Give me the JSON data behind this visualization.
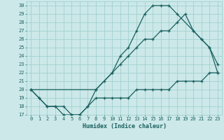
{
  "xlabel": "Humidex (Indice chaleur)",
  "background_color": "#cce8e8",
  "grid_color": "#99cccc",
  "line_color": "#1a6060",
  "xlim": [
    -0.5,
    23.5
  ],
  "ylim": [
    17,
    30.5
  ],
  "xticks": [
    0,
    1,
    2,
    3,
    4,
    5,
    6,
    7,
    8,
    9,
    10,
    11,
    12,
    13,
    14,
    15,
    16,
    17,
    18,
    19,
    20,
    21,
    22,
    23
  ],
  "yticks": [
    17,
    18,
    19,
    20,
    21,
    22,
    23,
    24,
    25,
    26,
    27,
    28,
    29,
    30
  ],
  "curve_upper_x": [
    0,
    1,
    2,
    3,
    4,
    5,
    6,
    7,
    8,
    10,
    11,
    12,
    13,
    14,
    15,
    16,
    17,
    18,
    20,
    21,
    22,
    23
  ],
  "curve_upper_y": [
    20,
    19,
    18,
    18,
    18,
    17,
    17,
    18,
    20,
    22,
    24,
    25,
    27,
    29,
    30,
    30,
    30,
    29,
    27,
    26,
    25,
    23
  ],
  "curve_middle_x": [
    0,
    8,
    9,
    10,
    11,
    12,
    13,
    14,
    15,
    16,
    17,
    18,
    19,
    20,
    21,
    22,
    23
  ],
  "curve_middle_y": [
    20,
    20,
    21,
    22,
    23,
    24,
    25,
    26,
    26,
    27,
    27,
    28,
    29,
    27,
    26,
    25,
    22
  ],
  "curve_lower_x": [
    0,
    1,
    2,
    3,
    4,
    5,
    6,
    7,
    8,
    9,
    10,
    11,
    12,
    13,
    14,
    15,
    16,
    17,
    18,
    19,
    20,
    21,
    22,
    23
  ],
  "curve_lower_y": [
    20,
    19,
    18,
    18,
    17,
    17,
    17,
    18,
    19,
    19,
    19,
    19,
    19,
    20,
    20,
    20,
    20,
    20,
    21,
    21,
    21,
    21,
    22,
    22
  ]
}
